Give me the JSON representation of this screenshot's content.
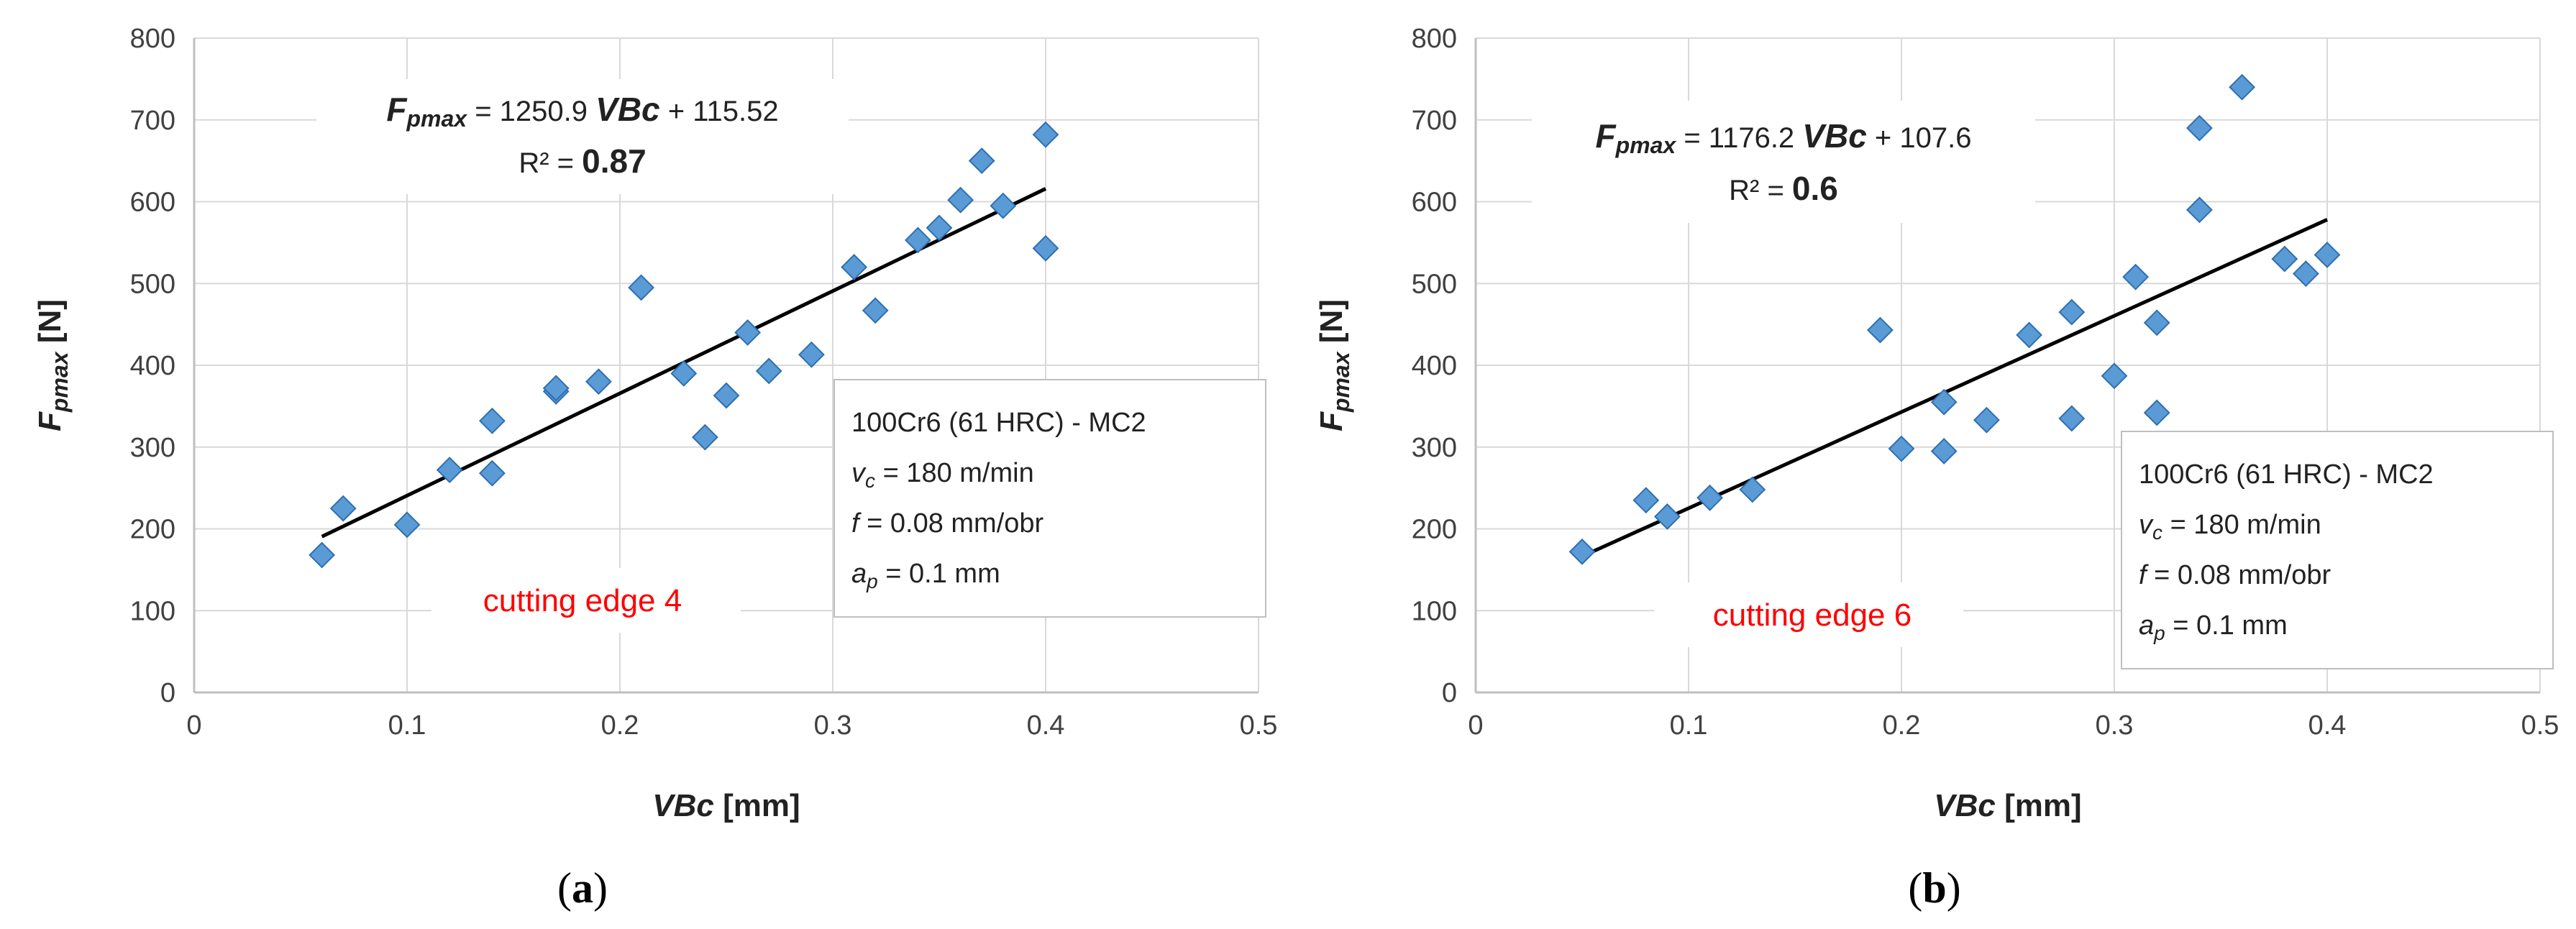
{
  "colors": {
    "marker_fill": "#5B9BD5",
    "marker_stroke": "#2E6FB0",
    "trendline": "#000000",
    "grid": "#D9D9D9",
    "annotation_red": "#FF0000"
  },
  "chart_data": [
    {
      "type": "scatter",
      "panel_label": "(a)",
      "panel_letter": "a",
      "xlabel": "VBc [mm]",
      "xlabel_main": "VBc",
      "xlabel_unit": "[mm]",
      "ylabel": "Fpmax [N]",
      "ylabel_main": "F",
      "ylabel_sub": "pmax",
      "ylabel_unit": "[N]",
      "xlim": [
        0,
        0.5
      ],
      "ylim": [
        0,
        800
      ],
      "xticks": [
        0,
        0.1,
        0.2,
        0.3,
        0.4,
        0.5
      ],
      "xtick_labels": [
        "0",
        "0.1",
        "0.2",
        "0.3",
        "0.4",
        "0.5"
      ],
      "yticks": [
        0,
        100,
        200,
        300,
        400,
        500,
        600,
        700,
        800
      ],
      "ytick_labels": [
        "0",
        "100",
        "200",
        "300",
        "400",
        "500",
        "600",
        "700",
        "800"
      ],
      "grid": true,
      "points": [
        [
          0.06,
          168
        ],
        [
          0.07,
          225
        ],
        [
          0.1,
          205
        ],
        [
          0.12,
          272
        ],
        [
          0.14,
          268
        ],
        [
          0.14,
          332
        ],
        [
          0.17,
          368
        ],
        [
          0.17,
          372
        ],
        [
          0.19,
          380
        ],
        [
          0.21,
          495
        ],
        [
          0.23,
          390
        ],
        [
          0.24,
          312
        ],
        [
          0.25,
          363
        ],
        [
          0.26,
          440
        ],
        [
          0.27,
          393
        ],
        [
          0.29,
          413
        ],
        [
          0.31,
          520
        ],
        [
          0.32,
          467
        ],
        [
          0.34,
          553
        ],
        [
          0.35,
          568
        ],
        [
          0.36,
          602
        ],
        [
          0.37,
          650
        ],
        [
          0.38,
          595
        ],
        [
          0.4,
          543
        ],
        [
          0.4,
          682
        ]
      ],
      "trendline": {
        "slope": 1250.9,
        "intercept": 115.52,
        "x_range": [
          0.06,
          0.4
        ]
      },
      "equation": {
        "lhs_main": "F",
        "lhs_sub": "pmax",
        "eq_text": " = 1250.9 ",
        "var": "VBc",
        "rest": " + 115.52",
        "r2_label": "R² = ",
        "r2_value": "0.87"
      },
      "info_lines": [
        "100Cr6  (61 HRC) - MC2",
        "= 180 m/min",
        "= 0.08 mm/obr",
        "= 0.1 mm"
      ],
      "info_vars": [
        "v",
        "f",
        "a"
      ],
      "info_subs": [
        "c",
        "p"
      ],
      "annotation": "cutting edge 4"
    },
    {
      "type": "scatter",
      "panel_label": "(b)",
      "panel_letter": "b",
      "xlabel": "VBc [mm]",
      "xlabel_main": "VBc",
      "xlabel_unit": "[mm]",
      "ylabel": "Fpmax [N]",
      "ylabel_main": "F",
      "ylabel_sub": "pmax",
      "ylabel_unit": "[N]",
      "xlim": [
        0,
        0.5
      ],
      "ylim": [
        0,
        800
      ],
      "xticks": [
        0,
        0.1,
        0.2,
        0.3,
        0.4,
        0.5
      ],
      "xtick_labels": [
        "0",
        "0.1",
        "0.2",
        "0.3",
        "0.4",
        "0.5"
      ],
      "yticks": [
        0,
        100,
        200,
        300,
        400,
        500,
        600,
        700,
        800
      ],
      "ytick_labels": [
        "0",
        "100",
        "200",
        "300",
        "400",
        "500",
        "600",
        "700",
        "800"
      ],
      "grid": true,
      "points": [
        [
          0.05,
          172
        ],
        [
          0.08,
          235
        ],
        [
          0.09,
          215
        ],
        [
          0.11,
          238
        ],
        [
          0.13,
          248
        ],
        [
          0.19,
          443
        ],
        [
          0.2,
          298
        ],
        [
          0.22,
          295
        ],
        [
          0.22,
          355
        ],
        [
          0.24,
          333
        ],
        [
          0.26,
          437
        ],
        [
          0.28,
          335
        ],
        [
          0.28,
          465
        ],
        [
          0.3,
          387
        ],
        [
          0.31,
          508
        ],
        [
          0.32,
          342
        ],
        [
          0.32,
          452
        ],
        [
          0.34,
          590
        ],
        [
          0.34,
          690
        ],
        [
          0.36,
          740
        ],
        [
          0.38,
          530
        ],
        [
          0.39,
          512
        ],
        [
          0.4,
          535
        ]
      ],
      "trendline": {
        "slope": 1176.2,
        "intercept": 107.6,
        "x_range": [
          0.05,
          0.4
        ]
      },
      "equation": {
        "lhs_main": "F",
        "lhs_sub": "pmax",
        "eq_text": " = 1176.2 ",
        "var": "VBc",
        "rest": " + 107.6",
        "r2_label": "R² = ",
        "r2_value": "0.6"
      },
      "info_lines": [
        "100Cr6  (61 HRC) - MC2",
        "= 180 m/min",
        "= 0.08 mm/obr",
        "= 0.1 mm"
      ],
      "info_vars": [
        "v",
        "f",
        "a"
      ],
      "info_subs": [
        "c",
        "p"
      ],
      "annotation": "cutting edge 6"
    }
  ]
}
